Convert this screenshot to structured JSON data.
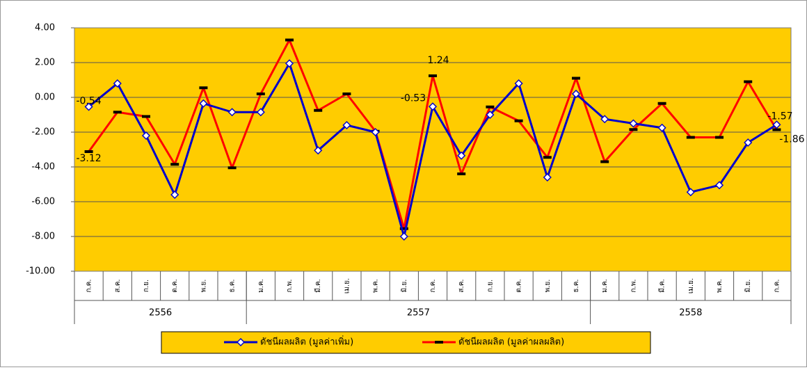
{
  "chart_data": {
    "type": "line",
    "categories": [
      "ก.ค.",
      "ส.ค.",
      "ก.ย.",
      "ต.ค.",
      "พ.ย.",
      "ธ.ค.",
      "ม.ค.",
      "ก.พ.",
      "มี.ค.",
      "เม.ย.",
      "พ.ค.",
      "มิ.ย.",
      "ก.ค.",
      "ส.ค.",
      "ก.ย.",
      "ต.ค.",
      "พ.ย.",
      "ธ.ค.",
      "ม.ค.",
      "ก.พ.",
      "มี.ค.",
      "เม.ย.",
      "พ.ค.",
      "มิ.ย.",
      "ก.ค."
    ],
    "groups": [
      {
        "label": "2556",
        "count": 6
      },
      {
        "label": "2557",
        "count": 12
      },
      {
        "label": "2558",
        "count": 7
      }
    ],
    "series": [
      {
        "name": "ดัชนีผลผลิต (มูลค่าเพิ่ม)",
        "color": "#0000cc",
        "label_color": "#333366",
        "marker": "diamond",
        "values": [
          -0.54,
          0.8,
          -2.2,
          -5.6,
          -0.35,
          -0.85,
          -0.85,
          1.95,
          -3.05,
          -1.6,
          -2.0,
          -8.0,
          -0.53,
          -3.35,
          -1.0,
          0.8,
          -4.6,
          0.2,
          -1.25,
          -1.5,
          -1.75,
          -5.45,
          -5.05,
          -2.6,
          -1.57
        ],
        "value_labels": [
          "-0.54",
          null,
          null,
          null,
          null,
          null,
          null,
          null,
          null,
          null,
          null,
          null,
          "-0.53",
          null,
          null,
          null,
          null,
          null,
          null,
          null,
          null,
          null,
          null,
          null,
          "-1.57"
        ]
      },
      {
        "name": "ดัชนีผลผลิต (มูลค่าผลผลิต)",
        "color": "#ff0000",
        "label_color": "#ff0000",
        "marker": "dash",
        "values": [
          -3.12,
          -0.85,
          -1.1,
          -3.85,
          0.55,
          -4.05,
          0.2,
          3.3,
          -0.75,
          0.2,
          -1.95,
          -7.55,
          1.24,
          -4.4,
          -0.55,
          -1.35,
          -3.45,
          1.1,
          -3.7,
          -1.85,
          -0.35,
          -2.3,
          -2.3,
          0.9,
          -1.86
        ],
        "value_labels": [
          "-3.12",
          null,
          null,
          null,
          null,
          null,
          null,
          null,
          null,
          null,
          null,
          null,
          "1.24",
          null,
          null,
          null,
          null,
          null,
          null,
          null,
          null,
          null,
          null,
          null,
          "-1.86"
        ]
      }
    ],
    "ylim": [
      -10,
      4
    ],
    "yticks": [
      {
        "value": -10,
        "label": "-10.00"
      },
      {
        "value": -8,
        "label": "-8.00"
      },
      {
        "value": -6,
        "label": "-6.00"
      },
      {
        "value": -4,
        "label": "-4.00"
      },
      {
        "value": -2,
        "label": "-2.00"
      },
      {
        "value": 0,
        "label": "0.00"
      },
      {
        "value": 2,
        "label": "2.00"
      },
      {
        "value": 4,
        "label": "4.00"
      }
    ],
    "grid": true,
    "plot_color": "#ffcc00"
  }
}
